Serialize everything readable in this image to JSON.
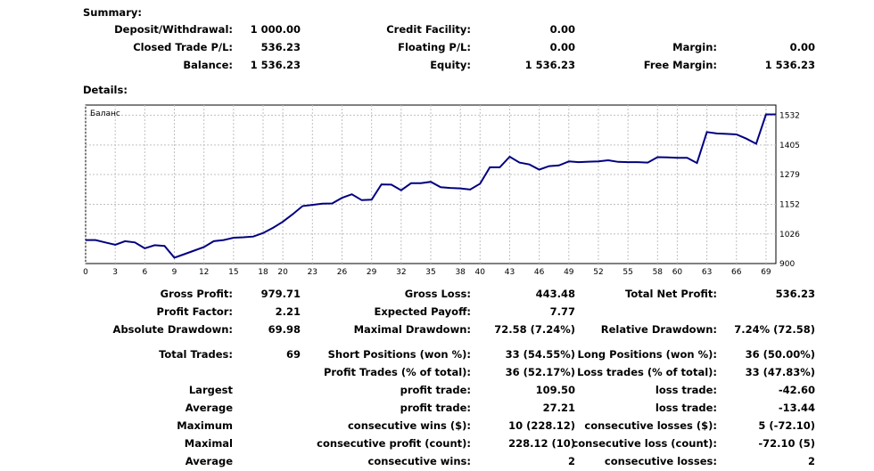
{
  "summary": {
    "heading": "Summary:",
    "deposit_label": "Deposit/Withdrawal:",
    "deposit_value": "1 000.00",
    "credit_label": "Credit Facility:",
    "credit_value": "0.00",
    "closed_pl_label": "Closed Trade P/L:",
    "closed_pl_value": "536.23",
    "floating_pl_label": "Floating P/L:",
    "floating_pl_value": "0.00",
    "margin_label": "Margin:",
    "margin_value": "0.00",
    "balance_label": "Balance:",
    "balance_value": "1 536.23",
    "equity_label": "Equity:",
    "equity_value": "1 536.23",
    "free_margin_label": "Free Margin:",
    "free_margin_value": "1 536.23"
  },
  "details": {
    "heading": "Details:"
  },
  "chart_data": {
    "type": "line",
    "title": "Баланс",
    "xlabel": "",
    "ylabel": "",
    "xlim": [
      0,
      70
    ],
    "ylim": [
      900,
      1575
    ],
    "x_ticks": [
      0,
      3,
      6,
      9,
      12,
      15,
      18,
      20,
      23,
      26,
      29,
      32,
      35,
      38,
      40,
      43,
      46,
      49,
      52,
      55,
      58,
      60,
      63,
      66,
      69
    ],
    "x_tick_labels": [
      "0",
      "3",
      "6",
      "9",
      "12",
      "15",
      "18",
      "20",
      "23",
      "26",
      "29",
      "32",
      "35",
      "38",
      "40",
      "43",
      "46",
      "49",
      "52",
      "55",
      "58",
      "60",
      "63",
      "66",
      "69"
    ],
    "y_ticks": [
      900,
      1026,
      1152,
      1279,
      1405,
      1532
    ],
    "y_tick_labels": [
      "900",
      "1026",
      "1152",
      "1279",
      "1405",
      "1532"
    ],
    "grid": true,
    "line_color": "#000080",
    "series": [
      {
        "name": "",
        "x": [
          0,
          1,
          2,
          3,
          4,
          5,
          6,
          7,
          8,
          9,
          10,
          11,
          12,
          13,
          14,
          15,
          16,
          17,
          18,
          19,
          20,
          21,
          22,
          23,
          24,
          25,
          26,
          27,
          28,
          29,
          30,
          31,
          32,
          33,
          34,
          35,
          36,
          37,
          38,
          39,
          40,
          41,
          42,
          43,
          44,
          45,
          46,
          47,
          48,
          49,
          50,
          51,
          52,
          53,
          54,
          55,
          56,
          57,
          58,
          59,
          60,
          61,
          62,
          63,
          64,
          65,
          66,
          67,
          68,
          69,
          70
        ],
        "y": [
          1000,
          1000,
          990,
          980,
          995,
          990,
          965,
          978,
          975,
          925,
          940,
          955,
          970,
          995,
          1000,
          1010,
          1012,
          1015,
          1030,
          1052,
          1078,
          1110,
          1145,
          1150,
          1155,
          1156,
          1180,
          1195,
          1170,
          1172,
          1237,
          1236,
          1212,
          1242,
          1242,
          1248,
          1225,
          1222,
          1220,
          1215,
          1240,
          1310,
          1310,
          1355,
          1330,
          1322,
          1300,
          1315,
          1318,
          1335,
          1332,
          1334,
          1335,
          1340,
          1333,
          1332,
          1332,
          1330,
          1353,
          1352,
          1350,
          1350,
          1328,
          1460,
          1454,
          1452,
          1450,
          1432,
          1410,
          1535,
          1535
        ]
      }
    ]
  },
  "stats": {
    "gross_profit_label": "Gross Profit:",
    "gross_profit_value": "979.71",
    "gross_loss_label": "Gross Loss:",
    "gross_loss_value": "443.48",
    "total_net_label": "Total Net Profit:",
    "total_net_value": "536.23",
    "profit_factor_label": "Profit Factor:",
    "profit_factor_value": "2.21",
    "expected_payoff_label": "Expected Payoff:",
    "expected_payoff_value": "7.77",
    "abs_dd_label": "Absolute Drawdown:",
    "abs_dd_value": "69.98",
    "max_dd_label": "Maximal Drawdown:",
    "max_dd_value": "72.58 (7.24%)",
    "rel_dd_label": "Relative Drawdown:",
    "rel_dd_value": "7.24% (72.58)",
    "total_trades_label": "Total Trades:",
    "total_trades_value": "69",
    "short_pos_label": "Short Positions (won %):",
    "short_pos_value": "33 (54.55%)",
    "long_pos_label": "Long Positions (won %):",
    "long_pos_value": "36 (50.00%)",
    "profit_trades_label": "Profit Trades (% of total):",
    "profit_trades_value": "36 (52.17%)",
    "loss_trades_label": "Loss trades (% of total):",
    "loss_trades_value": "33 (47.83%)",
    "largest_label": "Largest",
    "largest_profit_label": "profit trade:",
    "largest_profit_value": "109.50",
    "largest_loss_label": "loss trade:",
    "largest_loss_value": "-42.60",
    "average_label": "Average",
    "average_profit_label": "profit trade:",
    "average_profit_value": "27.21",
    "average_loss_label": "loss trade:",
    "average_loss_value": "-13.44",
    "maximum_label": "Maximum",
    "max_wins_label": "consecutive wins ($):",
    "max_wins_value": "10 (228.12)",
    "max_losses_label": "consecutive losses ($):",
    "max_losses_value": "5 (-72.10)",
    "maximal_label": "Maximal",
    "maximal_profit_label": "consecutive profit (count):",
    "maximal_profit_value": "228.12 (10)",
    "maximal_loss_label": "consecutive loss (count):",
    "maximal_loss_value": "-72.10 (5)",
    "average2_label": "Average",
    "avg_wins_label": "consecutive wins:",
    "avg_wins_value": "2",
    "avg_losses_label": "consecutive losses:",
    "avg_losses_value": "2"
  }
}
